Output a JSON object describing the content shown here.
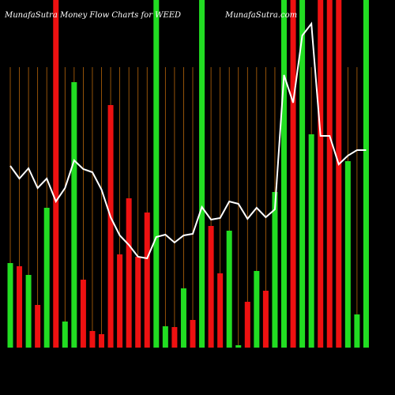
{
  "chart_data": {
    "type": "bar-line",
    "title": "MunafaSutra Money Flow Charts for WEED",
    "subtitle": "MunafaSutra.com",
    "ylim": [
      0,
      440
    ],
    "bars": {
      "values": [
        107,
        103,
        92,
        54,
        177,
        440,
        33,
        336,
        86,
        21,
        17,
        307,
        118,
        189,
        115,
        171,
        440,
        27,
        26,
        75,
        35,
        440,
        154,
        94,
        148,
        3,
        58,
        97,
        72,
        197,
        440,
        440,
        440,
        270,
        440,
        440,
        440,
        236,
        42,
        440
      ],
      "colors": [
        "#22dd22",
        "#ee1111",
        "#22dd22",
        "#ee1111",
        "#22dd22",
        "#ee1111",
        "#22dd22",
        "#22dd22",
        "#ee1111",
        "#ee1111",
        "#ee1111",
        "#ee1111",
        "#ee1111",
        "#ee1111",
        "#ee1111",
        "#ee1111",
        "#22dd22",
        "#22dd22",
        "#ee1111",
        "#22dd22",
        "#ee1111",
        "#22dd22",
        "#ee1111",
        "#ee1111",
        "#22dd22",
        "#22dd22",
        "#ee1111",
        "#22dd22",
        "#ee1111",
        "#22dd22",
        "#22dd22",
        "#ee1111",
        "#22dd22",
        "#22dd22",
        "#ee1111",
        "#ee1111",
        "#ee1111",
        "#22dd22",
        "#22dd22",
        "#22dd22"
      ]
    },
    "line": {
      "color": "#ffffff",
      "values": [
        230,
        214,
        227,
        202,
        214,
        185,
        202,
        237,
        226,
        222,
        200,
        165,
        142,
        130,
        115,
        113,
        140,
        143,
        133,
        142,
        144,
        178,
        162,
        164,
        185,
        182,
        163,
        177,
        165,
        175,
        345,
        310,
        395,
        410,
        268,
        268,
        232,
        243,
        250,
        250
      ]
    },
    "grid_color": "#b8660b"
  }
}
